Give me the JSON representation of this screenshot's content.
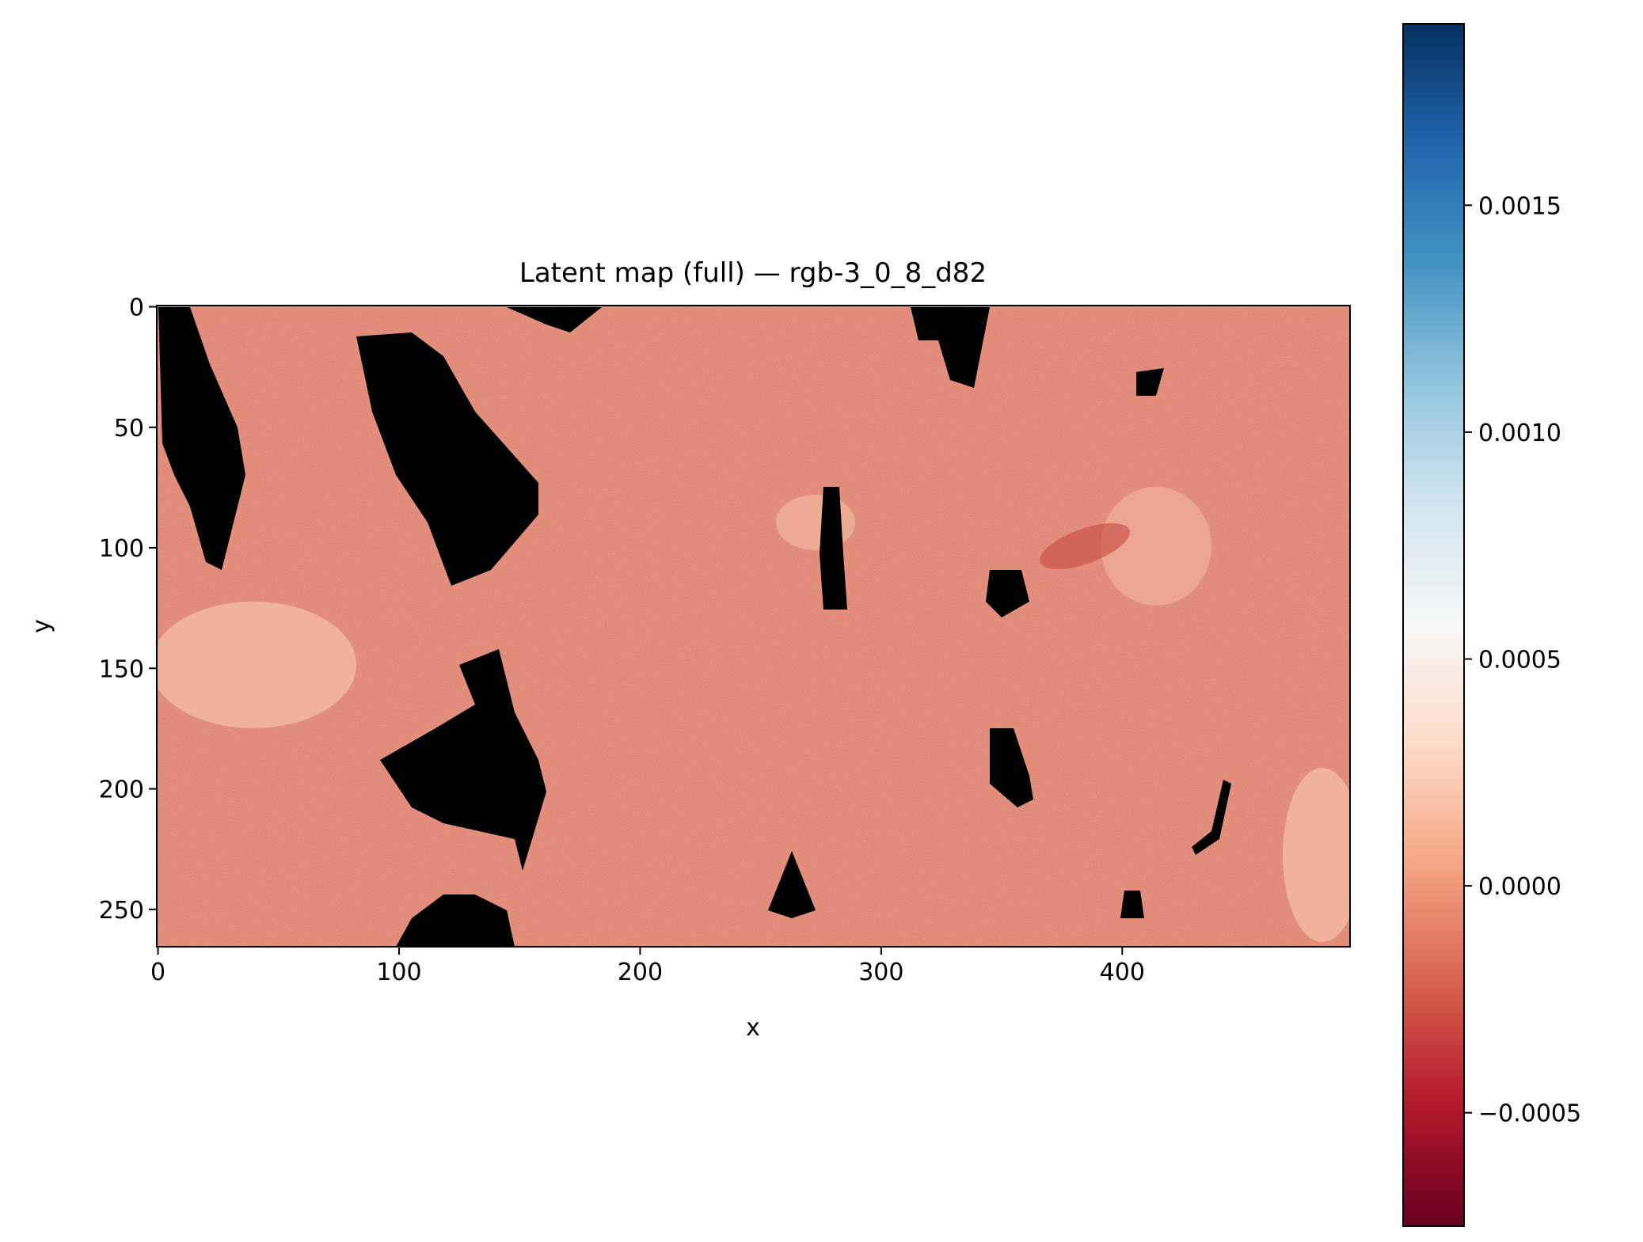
{
  "chart_data": {
    "type": "heatmap",
    "title": "Latent map (full) — rgb-3_0_8_d82",
    "xlabel": "x",
    "ylabel": "y",
    "xlim": [
      -0.5,
      494.5
    ],
    "ylim": [
      265.5,
      -0.5
    ],
    "x_ticks": [
      0,
      100,
      200,
      300,
      400
    ],
    "x_tick_labels": [
      "0",
      "100",
      "200",
      "300",
      "400"
    ],
    "y_ticks": [
      0,
      50,
      100,
      150,
      200,
      250
    ],
    "y_tick_labels": [
      "0",
      "50",
      "100",
      "150",
      "200",
      "250"
    ],
    "colormap": "RdBu",
    "nan_color": "#000000",
    "colorbar": {
      "vmin": -0.00075,
      "vmax": 0.0019,
      "ticks": [
        -0.0005,
        0.0,
        0.0005,
        0.001,
        0.0015
      ],
      "tick_labels": [
        "−0.0005",
        "0.0000",
        "0.0005",
        "0.0010",
        "0.0015"
      ]
    },
    "grid": false
  }
}
